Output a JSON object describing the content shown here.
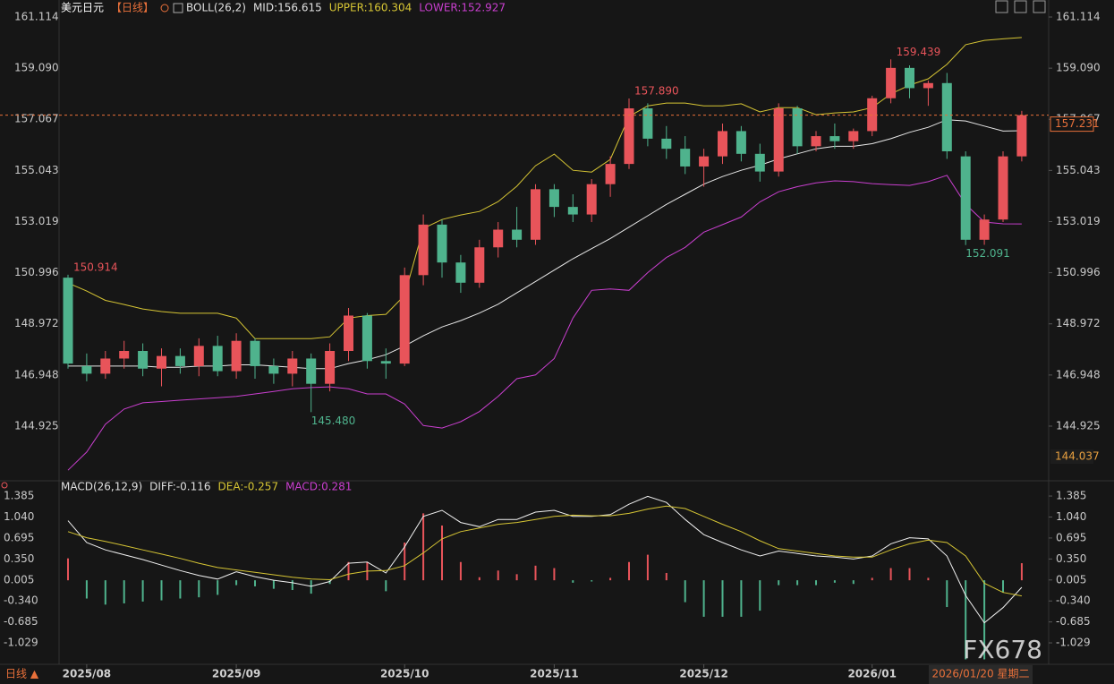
{
  "chart_data": [
    {
      "type": "candlestick",
      "title": "美元日元",
      "period": "【日线】",
      "indicator": "BOLL(26,2)",
      "up_color": "#e8545a",
      "down_color": "#4fb38d",
      "ylim": [
        143.011,
        161.504
      ],
      "yticks": [
        161.114,
        {
          "value": 159.09,
          "label": "159.090"
        },
        157.067,
        155.043,
        153.019,
        150.996,
        148.972,
        146.948,
        144.925
      ],
      "last_price": 157.231,
      "axis_low_price": 144.037,
      "open": [
        150.8,
        147.3,
        147.0,
        147.6,
        147.9,
        147.2,
        147.7,
        147.3,
        148.1,
        147.1,
        148.3,
        147.3,
        147.0,
        147.6,
        146.6,
        147.9,
        149.3,
        147.5,
        147.4,
        150.9,
        152.9,
        151.4,
        150.6,
        152.0,
        152.7,
        152.3,
        154.3,
        153.6,
        153.3,
        154.5,
        155.3,
        157.5,
        156.3,
        155.9,
        155.2,
        155.6,
        156.6,
        155.7,
        155.0,
        157.5,
        156.0,
        156.4,
        156.2,
        156.6,
        157.9,
        159.1,
        158.3,
        158.5,
        155.6,
        152.3,
        153.1,
        155.6
      ],
      "high": [
        150.914,
        147.8,
        147.9,
        148.3,
        148.2,
        148.0,
        148.0,
        148.4,
        148.5,
        148.6,
        148.4,
        147.6,
        147.9,
        147.8,
        148.2,
        149.6,
        149.4,
        148.0,
        151.2,
        153.3,
        153.1,
        151.7,
        152.3,
        153.0,
        153.6,
        154.5,
        154.5,
        154.1,
        154.7,
        155.6,
        157.89,
        157.7,
        156.8,
        156.4,
        155.9,
        156.9,
        156.8,
        156.1,
        157.7,
        157.6,
        156.6,
        156.9,
        156.7,
        158.0,
        159.439,
        159.2,
        158.6,
        158.9,
        155.8,
        153.3,
        155.8,
        157.4
      ],
      "low": [
        147.2,
        146.7,
        146.8,
        147.2,
        146.9,
        146.5,
        147.0,
        146.9,
        146.9,
        146.8,
        146.8,
        146.6,
        146.5,
        145.48,
        146.3,
        147.5,
        147.2,
        146.8,
        147.3,
        150.5,
        150.8,
        150.2,
        150.4,
        151.6,
        152.0,
        152.1,
        153.2,
        153.0,
        153.0,
        154.0,
        155.1,
        156.0,
        155.5,
        154.9,
        154.4,
        155.3,
        155.4,
        154.6,
        154.8,
        155.7,
        155.8,
        155.9,
        155.9,
        156.4,
        157.7,
        157.9,
        157.6,
        155.5,
        152.091,
        152.1,
        153.0,
        155.4
      ],
      "close": [
        147.4,
        147.0,
        147.6,
        147.9,
        147.2,
        147.7,
        147.3,
        148.1,
        147.1,
        148.3,
        147.3,
        147.0,
        147.6,
        146.6,
        147.9,
        149.3,
        147.5,
        147.4,
        150.9,
        152.9,
        151.4,
        150.6,
        152.0,
        152.7,
        152.3,
        154.3,
        153.6,
        153.3,
        154.5,
        155.3,
        157.5,
        156.3,
        155.9,
        155.2,
        155.6,
        156.6,
        155.7,
        155.0,
        157.5,
        156.0,
        156.4,
        156.2,
        156.6,
        157.9,
        159.1,
        158.3,
        158.5,
        155.8,
        152.3,
        153.1,
        155.6,
        157.231
      ],
      "high_labels": [
        "150.914",
        null,
        null,
        null,
        null,
        null,
        null,
        null,
        null,
        null,
        null,
        null,
        null,
        null,
        null,
        null,
        null,
        null,
        null,
        null,
        null,
        null,
        null,
        null,
        null,
        null,
        null,
        null,
        null,
        null,
        "157.890",
        null,
        null,
        null,
        null,
        null,
        null,
        null,
        null,
        null,
        null,
        null,
        null,
        null,
        "159.439",
        null,
        null,
        null,
        null,
        null,
        null,
        null
      ],
      "low_labels": [
        null,
        null,
        null,
        null,
        null,
        null,
        null,
        null,
        null,
        null,
        null,
        null,
        null,
        "145.480",
        null,
        null,
        null,
        null,
        null,
        null,
        null,
        null,
        null,
        null,
        null,
        null,
        null,
        null,
        null,
        null,
        null,
        null,
        null,
        null,
        null,
        null,
        null,
        null,
        null,
        null,
        null,
        null,
        null,
        null,
        null,
        null,
        null,
        null,
        "152.091",
        null,
        null,
        null
      ],
      "series": [
        {
          "name": "MID:156.615",
          "color": "#e8e8e8",
          "values": [
            147.3,
            147.3,
            147.3,
            147.3,
            147.3,
            147.25,
            147.25,
            147.3,
            147.3,
            147.35,
            147.35,
            147.3,
            147.25,
            147.2,
            147.2,
            147.4,
            147.55,
            147.75,
            148.1,
            148.5,
            148.85,
            149.1,
            149.4,
            149.75,
            150.2,
            150.65,
            151.1,
            151.55,
            151.95,
            152.35,
            152.8,
            153.25,
            153.7,
            154.1,
            154.5,
            154.8,
            155.05,
            155.25,
            155.5,
            155.7,
            155.9,
            156.0,
            156.0,
            156.1,
            156.3,
            156.55,
            156.75,
            157.05,
            157.0,
            156.8,
            156.6,
            156.615
          ]
        },
        {
          "name": "UPPER:160.304",
          "color": "#d6c534",
          "values": [
            150.59,
            150.27,
            149.9,
            149.74,
            149.56,
            149.46,
            149.39,
            149.39,
            149.39,
            149.2,
            148.39,
            148.39,
            148.39,
            148.39,
            148.46,
            149.2,
            149.3,
            149.35,
            150.1,
            152.75,
            153.1,
            153.28,
            153.42,
            153.81,
            154.42,
            155.23,
            155.69,
            155.05,
            154.98,
            155.48,
            157.18,
            157.6,
            157.71,
            157.71,
            157.6,
            157.6,
            157.68,
            157.36,
            157.53,
            157.53,
            157.25,
            157.32,
            157.36,
            157.53,
            158.07,
            158.42,
            158.67,
            159.24,
            160.02,
            160.19,
            160.25,
            160.304
          ]
        },
        {
          "name": "LOWER:152.927",
          "color": "#c93fcf",
          "values": [
            143.18,
            143.9,
            145.0,
            145.6,
            145.85,
            145.9,
            145.95,
            146.0,
            146.05,
            146.1,
            146.2,
            146.3,
            146.4,
            146.45,
            146.48,
            146.4,
            146.2,
            146.2,
            145.8,
            144.95,
            144.85,
            145.1,
            145.5,
            146.1,
            146.8,
            146.95,
            147.6,
            149.2,
            150.3,
            150.35,
            150.3,
            151.0,
            151.6,
            152.0,
            152.6,
            152.9,
            153.2,
            153.8,
            154.2,
            154.4,
            154.55,
            154.63,
            154.6,
            154.52,
            154.48,
            154.45,
            154.6,
            154.85,
            153.7,
            153.0,
            152.93,
            152.927
          ]
        }
      ]
    },
    {
      "type": "macd",
      "title": "MACD(26,12,9)",
      "ylim": [
        -1.352,
        1.518
      ],
      "yticks": [
        1.385,
        {
          "value": 1.04,
          "label": "1.040"
        },
        0.695,
        {
          "value": 0.35,
          "label": "0.350"
        },
        0.005,
        {
          "value": -0.34,
          "label": "-0.340"
        },
        -0.685,
        -1.029
      ],
      "categories": [
        null,
        "2025/08",
        null,
        null,
        null,
        null,
        null,
        null,
        null,
        "2025/09",
        null,
        null,
        null,
        null,
        null,
        null,
        null,
        null,
        "2025/10",
        null,
        null,
        null,
        null,
        null,
        null,
        null,
        "2025/11",
        null,
        null,
        null,
        null,
        null,
        null,
        null,
        "2025/12",
        null,
        null,
        null,
        null,
        null,
        null,
        null,
        null,
        "2026/01",
        null,
        null,
        null,
        null,
        null,
        null,
        null,
        null
      ],
      "series": [
        {
          "name": "DIFF:-0.116",
          "color": "#f0f0f0",
          "values": [
            0.98,
            0.62,
            0.5,
            0.42,
            0.34,
            0.25,
            0.16,
            0.08,
            0.02,
            0.14,
            0.06,
            0.0,
            -0.04,
            -0.1,
            -0.02,
            0.28,
            0.3,
            0.12,
            0.55,
            1.05,
            1.15,
            0.95,
            0.88,
            1.0,
            1.0,
            1.12,
            1.15,
            1.05,
            1.05,
            1.08,
            1.25,
            1.38,
            1.28,
            1.0,
            0.75,
            0.62,
            0.5,
            0.4,
            0.48,
            0.44,
            0.4,
            0.38,
            0.35,
            0.4,
            0.6,
            0.7,
            0.68,
            0.4,
            -0.25,
            -0.7,
            -0.45,
            -0.116
          ]
        },
        {
          "name": "DEA:-0.257",
          "color": "#d6c534",
          "values": [
            0.8,
            0.7,
            0.64,
            0.57,
            0.5,
            0.43,
            0.36,
            0.28,
            0.21,
            0.17,
            0.13,
            0.09,
            0.05,
            0.02,
            0.01,
            0.1,
            0.15,
            0.16,
            0.24,
            0.45,
            0.68,
            0.8,
            0.86,
            0.92,
            0.95,
            1.0,
            1.05,
            1.07,
            1.06,
            1.06,
            1.1,
            1.17,
            1.22,
            1.18,
            1.05,
            0.92,
            0.8,
            0.65,
            0.52,
            0.48,
            0.44,
            0.4,
            0.38,
            0.38,
            0.5,
            0.6,
            0.66,
            0.62,
            0.4,
            -0.05,
            -0.2,
            -0.257
          ]
        },
        {
          "name": "MACD:0.281",
          "color": "#c93fcf",
          "type": "bar",
          "up_color": "#e8545a",
          "down_color": "#4fb38d",
          "values": [
            0.36,
            -0.3,
            -0.4,
            -0.38,
            -0.35,
            -0.33,
            -0.3,
            -0.28,
            -0.24,
            -0.08,
            -0.1,
            -0.14,
            -0.16,
            -0.22,
            -0.06,
            0.3,
            0.3,
            -0.18,
            0.62,
            1.1,
            0.9,
            0.3,
            0.05,
            0.16,
            0.1,
            0.24,
            0.2,
            -0.04,
            -0.02,
            0.04,
            0.3,
            0.42,
            0.12,
            -0.36,
            -0.6,
            -0.6,
            -0.6,
            -0.5,
            -0.08,
            -0.08,
            -0.08,
            -0.04,
            -0.06,
            0.04,
            0.2,
            0.2,
            0.04,
            -0.44,
            -1.3,
            -1.3,
            -0.2,
            0.281
          ]
        }
      ]
    }
  ],
  "footer": {
    "period": "日线 ▲",
    "date": "2026/01/20 星期二",
    "watermark": "FX678"
  }
}
